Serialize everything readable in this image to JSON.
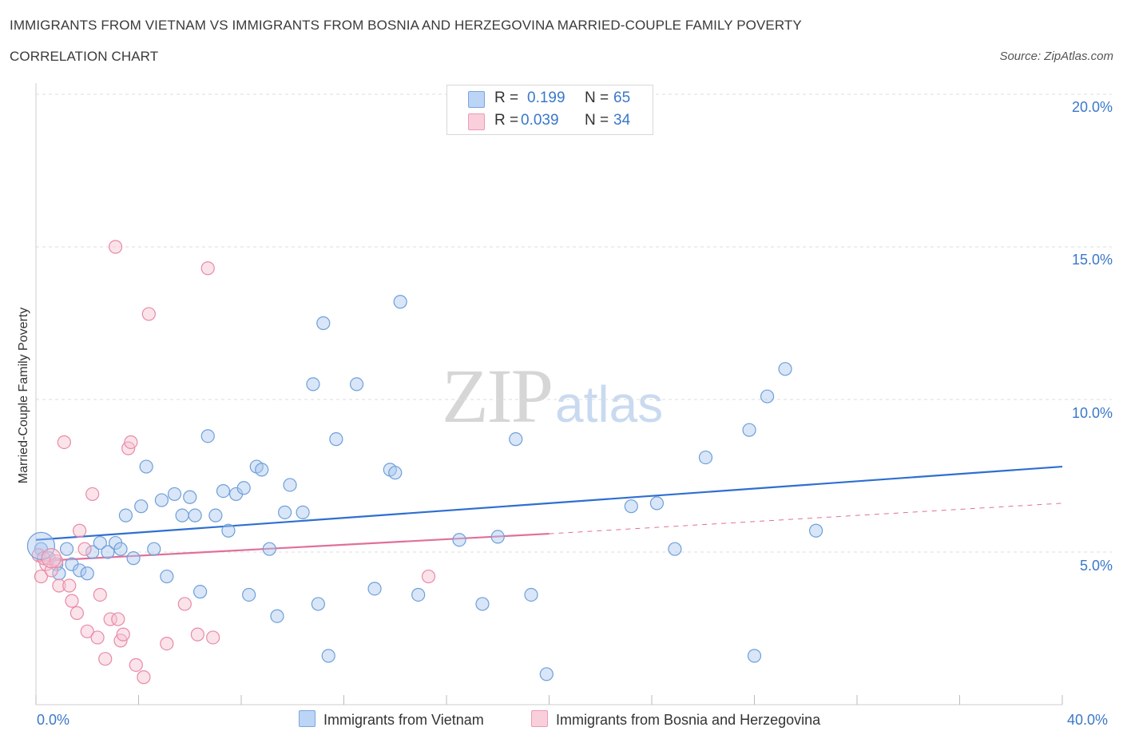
{
  "header": {
    "title_line1": "IMMIGRANTS FROM VIETNAM VS IMMIGRANTS FROM BOSNIA AND HERZEGOVINA MARRIED-COUPLE FAMILY POVERTY",
    "title_line2": "CORRELATION CHART",
    "source": "Source: ZipAtlas.com"
  },
  "watermark": {
    "zip": "ZIP",
    "atlas": "atlas"
  },
  "legend": {
    "r_label": "R =",
    "n_label": "N =",
    "series": [
      {
        "name": "Immigrants from Vietnam",
        "r": "0.199",
        "n": "65",
        "color": "#a9c8f0",
        "border": "#6f9fd8"
      },
      {
        "name": "Immigrants from Bosnia and Herzegovina",
        "r": "0.039",
        "n": "34",
        "color": "#f7c0d0",
        "border": "#e88aa7"
      }
    ]
  },
  "axes": {
    "ylabel": "Married-Couple Family Poverty",
    "x_min_label": "0.0%",
    "x_max_label": "40.0%",
    "y_ticks": [
      "5.0%",
      "10.0%",
      "15.0%",
      "20.0%"
    ]
  },
  "chart_data": {
    "type": "scatter",
    "xlabel": "",
    "ylabel": "Married-Couple Family Poverty",
    "xlim": [
      0,
      40
    ],
    "ylim": [
      0,
      20
    ],
    "grid": true,
    "series": [
      {
        "name": "Immigrants from Vietnam",
        "color": "#6f9fd8",
        "trend": {
          "x": [
            0,
            40
          ],
          "y": [
            5.4,
            7.8
          ],
          "color": "#2e6fd0"
        },
        "points": [
          [
            0.2,
            5.1
          ],
          [
            0.5,
            4.8
          ],
          [
            0.8,
            4.6
          ],
          [
            0.9,
            4.3
          ],
          [
            1.2,
            5.1
          ],
          [
            1.4,
            4.6
          ],
          [
            1.7,
            4.4
          ],
          [
            2.0,
            4.3
          ],
          [
            2.2,
            5.0
          ],
          [
            2.5,
            5.3
          ],
          [
            2.8,
            5.0
          ],
          [
            3.1,
            5.3
          ],
          [
            3.3,
            5.1
          ],
          [
            3.5,
            6.2
          ],
          [
            3.8,
            4.8
          ],
          [
            4.1,
            6.5
          ],
          [
            4.3,
            7.8
          ],
          [
            4.6,
            5.1
          ],
          [
            4.9,
            6.7
          ],
          [
            5.1,
            4.2
          ],
          [
            5.4,
            6.9
          ],
          [
            5.7,
            6.2
          ],
          [
            6.0,
            6.8
          ],
          [
            6.2,
            6.2
          ],
          [
            6.4,
            3.7
          ],
          [
            6.7,
            8.8
          ],
          [
            7.0,
            6.2
          ],
          [
            7.3,
            7.0
          ],
          [
            7.5,
            5.7
          ],
          [
            7.8,
            6.9
          ],
          [
            8.1,
            7.1
          ],
          [
            8.3,
            3.6
          ],
          [
            8.6,
            7.8
          ],
          [
            8.8,
            7.7
          ],
          [
            9.1,
            5.1
          ],
          [
            9.4,
            2.9
          ],
          [
            9.7,
            6.3
          ],
          [
            9.9,
            7.2
          ],
          [
            10.4,
            6.3
          ],
          [
            10.8,
            10.5
          ],
          [
            11.0,
            3.3
          ],
          [
            11.2,
            12.5
          ],
          [
            11.7,
            8.7
          ],
          [
            11.4,
            1.6
          ],
          [
            12.5,
            10.5
          ],
          [
            13.2,
            3.8
          ],
          [
            13.8,
            7.7
          ],
          [
            14.0,
            7.6
          ],
          [
            14.2,
            13.2
          ],
          [
            14.9,
            3.6
          ],
          [
            16.5,
            5.4
          ],
          [
            17.4,
            3.3
          ],
          [
            18.0,
            5.5
          ],
          [
            18.7,
            8.7
          ],
          [
            19.3,
            3.6
          ],
          [
            19.9,
            1.0
          ],
          [
            23.2,
            6.5
          ],
          [
            24.2,
            6.6
          ],
          [
            24.9,
            5.1
          ],
          [
            26.1,
            8.1
          ],
          [
            27.8,
            9.0
          ],
          [
            28.5,
            10.1
          ],
          [
            29.2,
            11.0
          ],
          [
            30.4,
            5.7
          ],
          [
            28.0,
            1.6
          ]
        ]
      },
      {
        "name": "Immigrants from Bosnia and Herzegovina",
        "color": "#e88aa7",
        "trend": {
          "x": [
            0,
            20
          ],
          "y": [
            4.7,
            5.6
          ],
          "dashed_to": [
            40,
            6.6
          ],
          "color": "#e0709a"
        },
        "points": [
          [
            0.1,
            4.9
          ],
          [
            0.2,
            4.2
          ],
          [
            0.4,
            4.6
          ],
          [
            0.6,
            4.4
          ],
          [
            0.8,
            4.7
          ],
          [
            0.9,
            3.9
          ],
          [
            1.1,
            8.6
          ],
          [
            1.3,
            3.9
          ],
          [
            1.4,
            3.4
          ],
          [
            1.6,
            3.0
          ],
          [
            1.7,
            5.7
          ],
          [
            1.9,
            5.1
          ],
          [
            2.0,
            2.4
          ],
          [
            2.2,
            6.9
          ],
          [
            2.4,
            2.2
          ],
          [
            2.5,
            3.6
          ],
          [
            2.7,
            1.5
          ],
          [
            2.9,
            2.8
          ],
          [
            3.1,
            15.0
          ],
          [
            3.2,
            2.8
          ],
          [
            3.3,
            2.1
          ],
          [
            3.4,
            2.3
          ],
          [
            3.6,
            8.4
          ],
          [
            3.7,
            8.6
          ],
          [
            3.9,
            1.3
          ],
          [
            4.2,
            0.9
          ],
          [
            4.4,
            12.8
          ],
          [
            5.1,
            2.0
          ],
          [
            5.8,
            3.3
          ],
          [
            6.3,
            2.3
          ],
          [
            6.7,
            14.3
          ],
          [
            6.9,
            2.2
          ],
          [
            15.3,
            4.2
          ],
          [
            0.3,
            4.8
          ]
        ]
      }
    ]
  }
}
